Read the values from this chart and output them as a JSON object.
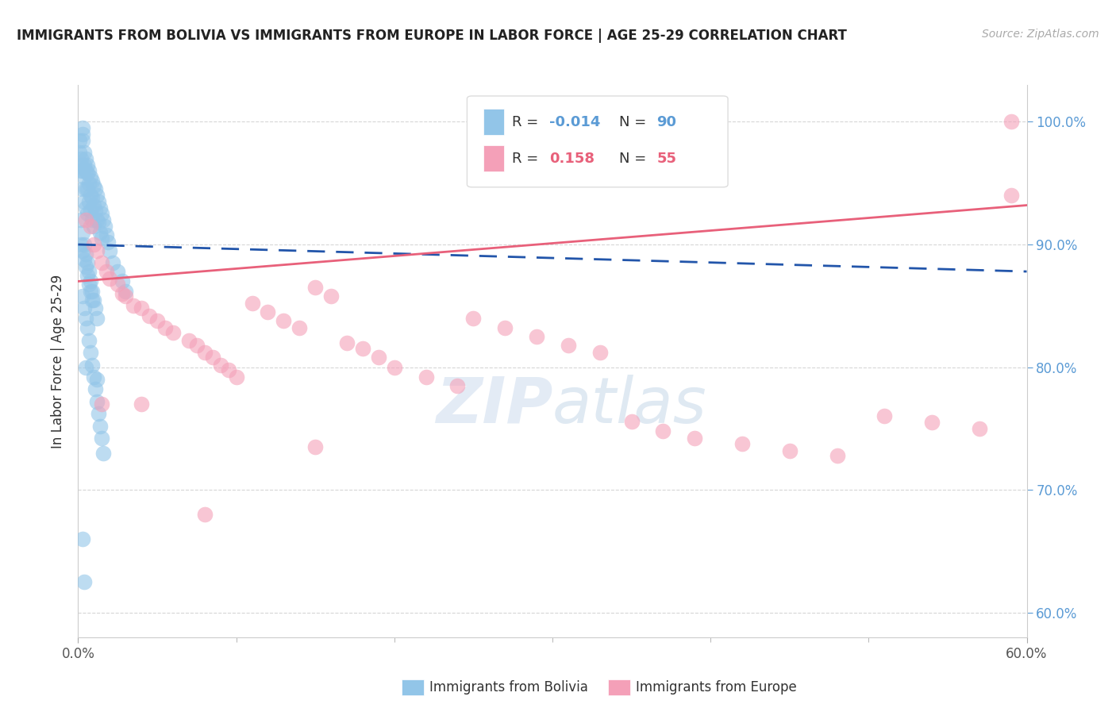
{
  "title": "IMMIGRANTS FROM BOLIVIA VS IMMIGRANTS FROM EUROPE IN LABOR FORCE | AGE 25-29 CORRELATION CHART",
  "source": "Source: ZipAtlas.com",
  "ylabel": "In Labor Force | Age 25-29",
  "legend_blue_r": "-0.014",
  "legend_blue_n": "90",
  "legend_pink_r": "0.158",
  "legend_pink_n": "55",
  "blue_color": "#92C5E8",
  "pink_color": "#F4A0B8",
  "blue_line_color": "#2255AA",
  "pink_line_color": "#E8607A",
  "background_color": "#FFFFFF",
  "tick_color": "#5B9BD5",
  "grid_color": "#CCCCCC",
  "blue_x": [
    0.001,
    0.001,
    0.002,
    0.002,
    0.002,
    0.003,
    0.003,
    0.003,
    0.003,
    0.003,
    0.004,
    0.004,
    0.004,
    0.004,
    0.005,
    0.005,
    0.005,
    0.005,
    0.006,
    0.006,
    0.006,
    0.006,
    0.007,
    0.007,
    0.007,
    0.008,
    0.008,
    0.008,
    0.009,
    0.009,
    0.009,
    0.01,
    0.01,
    0.01,
    0.011,
    0.011,
    0.012,
    0.012,
    0.013,
    0.013,
    0.014,
    0.014,
    0.015,
    0.015,
    0.016,
    0.017,
    0.018,
    0.019,
    0.02,
    0.022,
    0.025,
    0.028,
    0.03,
    0.002,
    0.003,
    0.004,
    0.005,
    0.006,
    0.007,
    0.008,
    0.009,
    0.01,
    0.011,
    0.012,
    0.002,
    0.003,
    0.004,
    0.005,
    0.006,
    0.007,
    0.008,
    0.009,
    0.003,
    0.004,
    0.005,
    0.006,
    0.007,
    0.008,
    0.009,
    0.01,
    0.011,
    0.012,
    0.013,
    0.014,
    0.015,
    0.016,
    0.003,
    0.004,
    0.005,
    0.012
  ],
  "blue_y": [
    0.985,
    0.975,
    0.97,
    0.965,
    0.96,
    0.995,
    0.99,
    0.985,
    0.96,
    0.945,
    0.975,
    0.965,
    0.955,
    0.935,
    0.97,
    0.96,
    0.945,
    0.93,
    0.965,
    0.958,
    0.945,
    0.925,
    0.96,
    0.95,
    0.935,
    0.955,
    0.94,
    0.928,
    0.952,
    0.938,
    0.92,
    0.948,
    0.932,
    0.915,
    0.945,
    0.928,
    0.94,
    0.92,
    0.935,
    0.918,
    0.93,
    0.91,
    0.925,
    0.905,
    0.92,
    0.915,
    0.908,
    0.902,
    0.895,
    0.885,
    0.878,
    0.87,
    0.862,
    0.92,
    0.91,
    0.9,
    0.892,
    0.885,
    0.878,
    0.87,
    0.862,
    0.855,
    0.848,
    0.84,
    0.9,
    0.895,
    0.888,
    0.882,
    0.875,
    0.868,
    0.862,
    0.855,
    0.858,
    0.848,
    0.84,
    0.832,
    0.822,
    0.812,
    0.802,
    0.792,
    0.782,
    0.772,
    0.762,
    0.752,
    0.742,
    0.73,
    0.66,
    0.625,
    0.8,
    0.79
  ],
  "pink_x": [
    0.005,
    0.008,
    0.01,
    0.012,
    0.015,
    0.018,
    0.02,
    0.025,
    0.028,
    0.03,
    0.035,
    0.04,
    0.045,
    0.05,
    0.055,
    0.06,
    0.07,
    0.075,
    0.08,
    0.085,
    0.09,
    0.095,
    0.1,
    0.11,
    0.12,
    0.13,
    0.14,
    0.15,
    0.16,
    0.17,
    0.18,
    0.19,
    0.2,
    0.22,
    0.24,
    0.25,
    0.27,
    0.29,
    0.31,
    0.33,
    0.35,
    0.37,
    0.39,
    0.42,
    0.45,
    0.48,
    0.51,
    0.54,
    0.57,
    0.59,
    0.015,
    0.04,
    0.08,
    0.15,
    0.59
  ],
  "pink_y": [
    0.92,
    0.915,
    0.9,
    0.895,
    0.885,
    0.878,
    0.872,
    0.868,
    0.86,
    0.858,
    0.85,
    0.848,
    0.842,
    0.838,
    0.832,
    0.828,
    0.822,
    0.818,
    0.812,
    0.808,
    0.802,
    0.798,
    0.792,
    0.852,
    0.845,
    0.838,
    0.832,
    0.865,
    0.858,
    0.82,
    0.815,
    0.808,
    0.8,
    0.792,
    0.785,
    0.84,
    0.832,
    0.825,
    0.818,
    0.812,
    0.756,
    0.748,
    0.742,
    0.738,
    0.732,
    0.728,
    0.76,
    0.755,
    0.75,
    1.0,
    0.77,
    0.77,
    0.68,
    0.735,
    0.94
  ]
}
